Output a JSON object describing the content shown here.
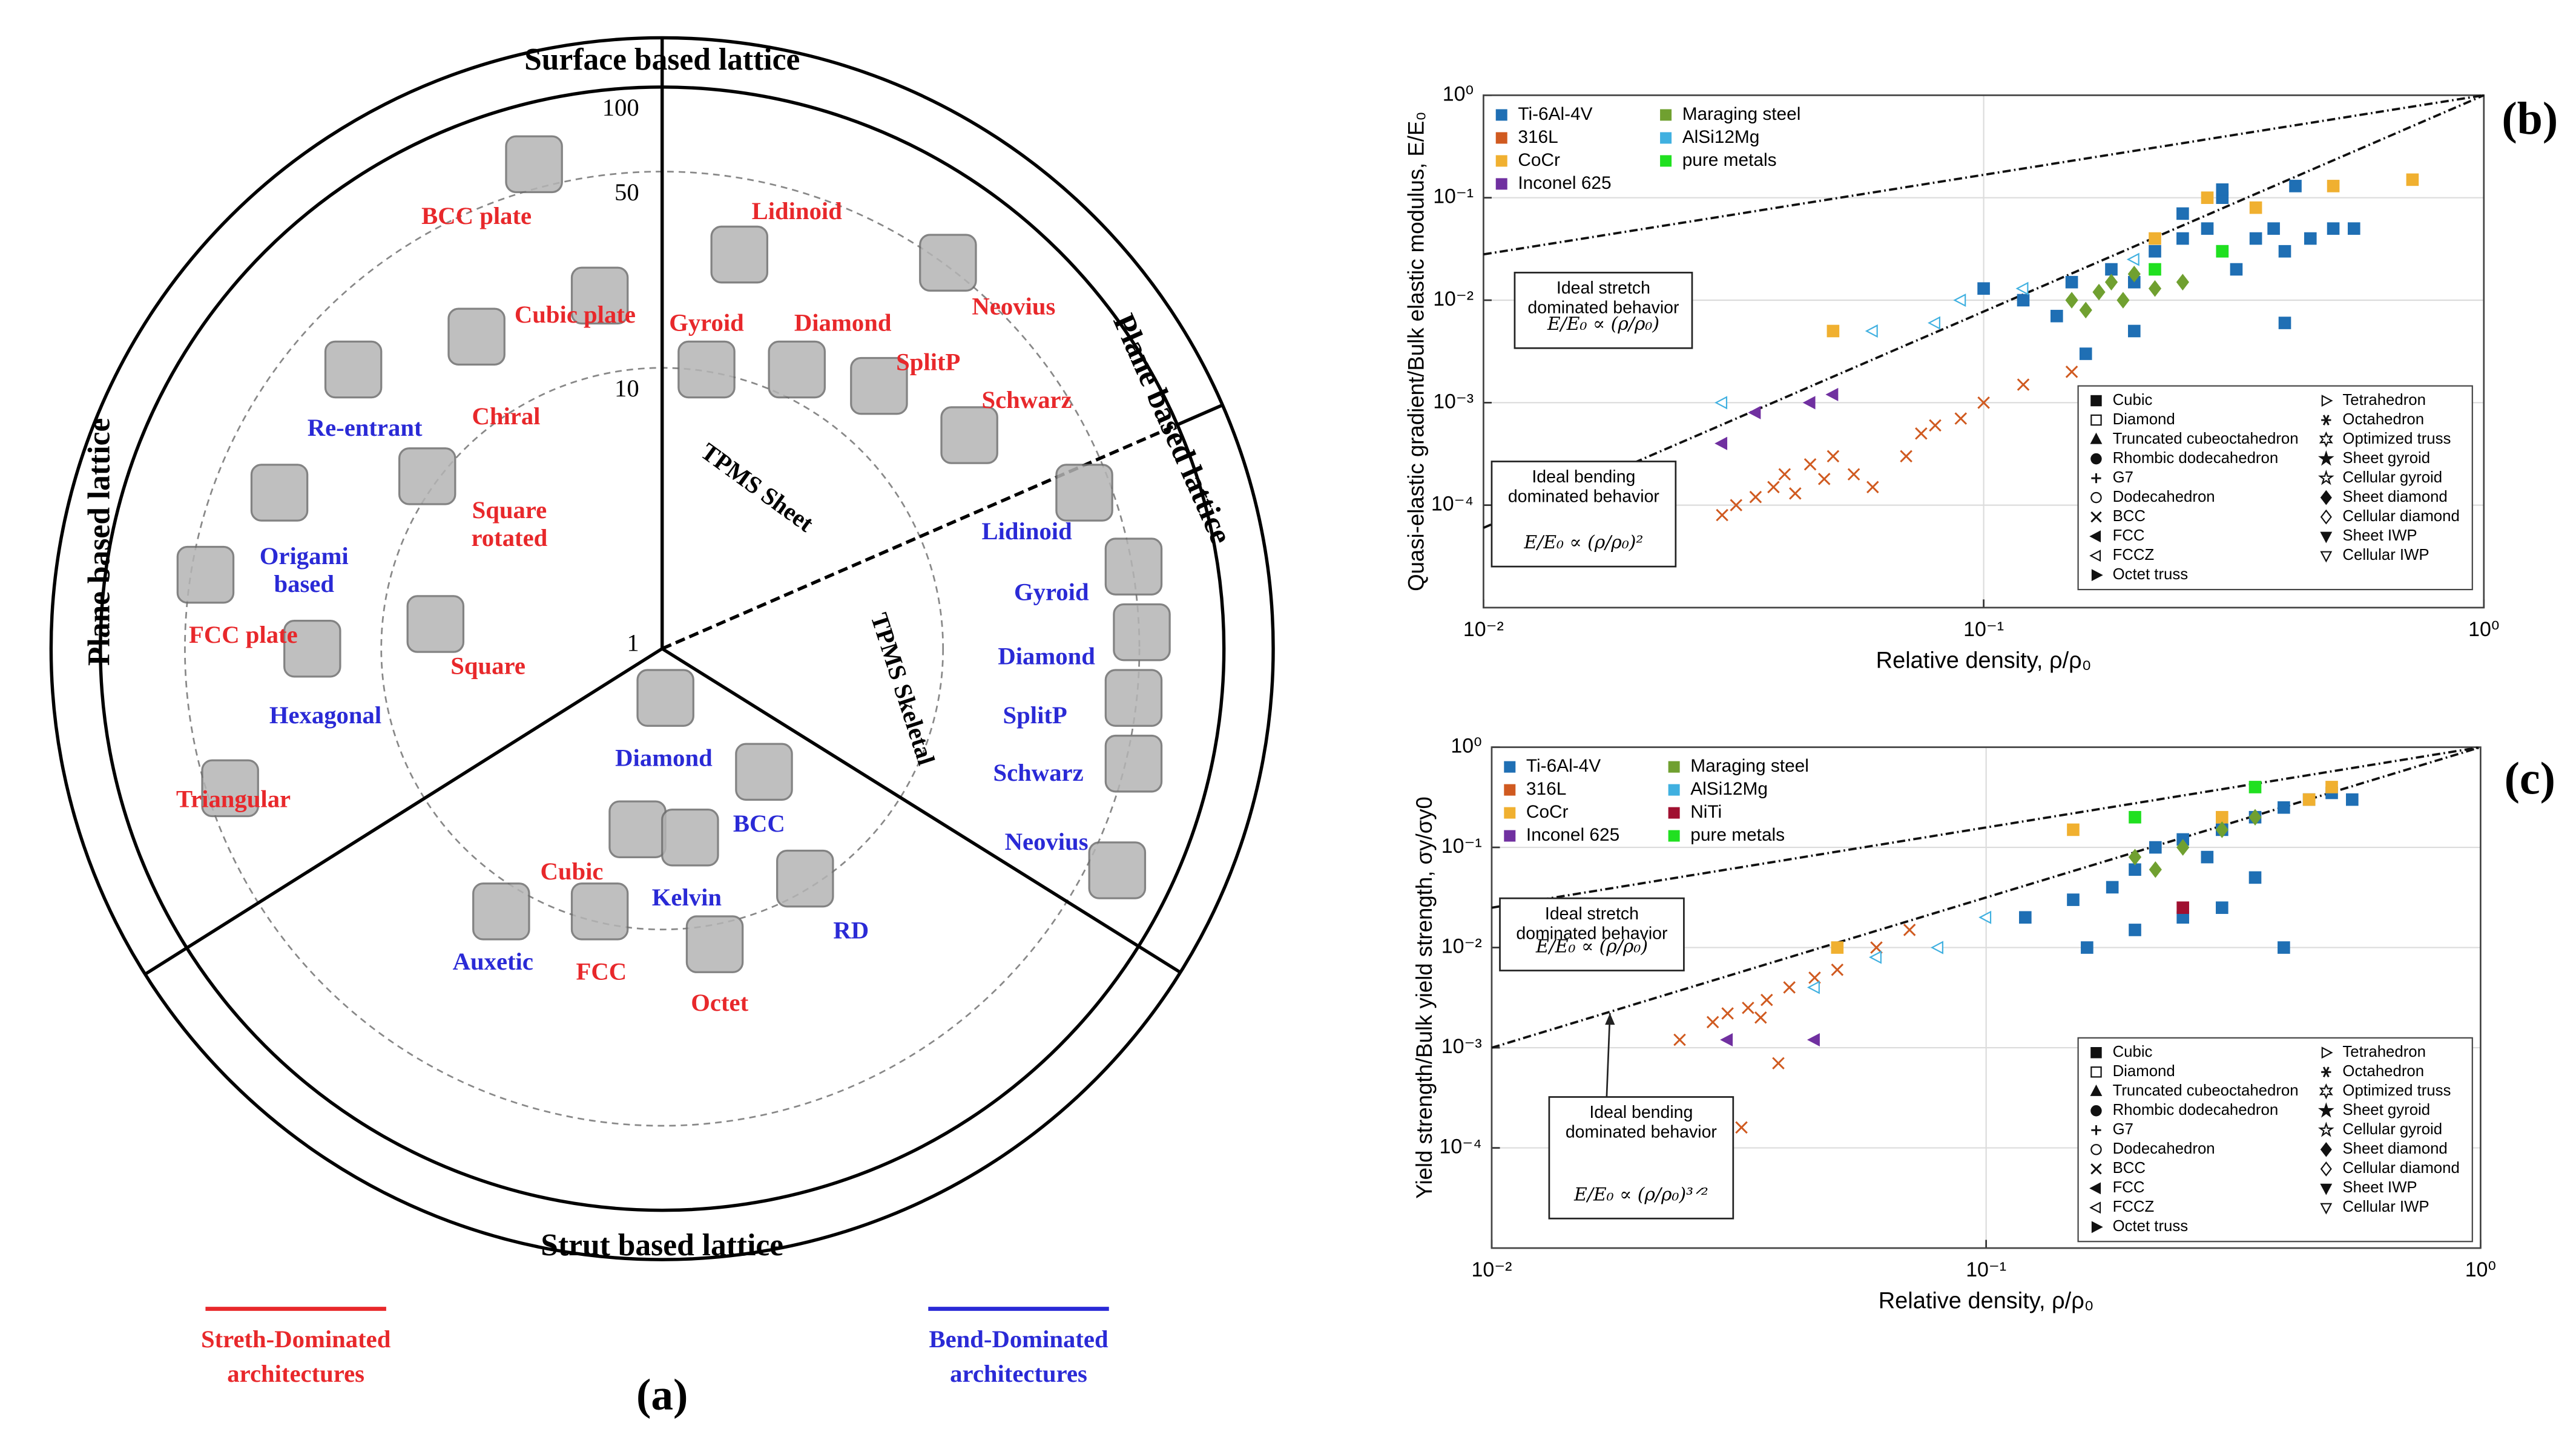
{
  "diagram": {
    "panel_label": "(a)",
    "regions": [
      "Surface based lattice",
      "Plane based lattice",
      "Plane based lattice",
      "Strut based lattice",
      "TPMS Sheet",
      "TPMS Skeletal"
    ],
    "scale_ticks": [
      1,
      10,
      50,
      100
    ],
    "groups": [
      {
        "name_lines": [
          "Streth-Dominated",
          "architectures"
        ],
        "color": "#e8282b",
        "items": [
          {
            "lines": [
              "BCC plate"
            ]
          },
          {
            "lines": [
              "Cubic plate"
            ]
          },
          {
            "lines": [
              "Chiral"
            ]
          },
          {
            "lines": [
              "Square",
              "rotated"
            ]
          },
          {
            "lines": [
              "FCC plate"
            ]
          },
          {
            "lines": [
              "Square"
            ]
          },
          {
            "lines": [
              "Triangular"
            ]
          },
          {
            "lines": [
              "Lidinoid"
            ]
          },
          {
            "lines": [
              "Gyroid"
            ]
          },
          {
            "lines": [
              "Diamond"
            ]
          },
          {
            "lines": [
              "Neovius"
            ]
          },
          {
            "lines": [
              "SplitP"
            ]
          },
          {
            "lines": [
              "Schwarz"
            ]
          },
          {
            "lines": [
              "Cubic"
            ]
          },
          {
            "lines": [
              "FCC"
            ]
          },
          {
            "lines": [
              "Octet"
            ]
          }
        ]
      },
      {
        "name_lines": [
          "Bend-Dominated",
          "architectures"
        ],
        "color": "#2a2ad6",
        "items": [
          {
            "lines": [
              "Re-entrant"
            ]
          },
          {
            "lines": [
              "Origami",
              "based"
            ]
          },
          {
            "lines": [
              "Hexagonal"
            ]
          },
          {
            "lines": [
              "Lidinoid"
            ]
          },
          {
            "lines": [
              "Gyroid"
            ]
          },
          {
            "lines": [
              "Diamond"
            ]
          },
          {
            "lines": [
              "SplitP"
            ]
          },
          {
            "lines": [
              "Schwarz"
            ]
          },
          {
            "lines": [
              "Neovius"
            ]
          },
          {
            "lines": [
              "Diamond"
            ]
          },
          {
            "lines": [
              "BCC"
            ]
          },
          {
            "lines": [
              "Kelvin"
            ]
          },
          {
            "lines": [
              "RD"
            ]
          },
          {
            "lines": [
              "Auxetic"
            ]
          }
        ]
      }
    ]
  },
  "chart_data": [
    {
      "type": "scatter",
      "panel_label": "(b)",
      "x_label": "Relative density, ρ/ρ₀",
      "y_label": "Quasi-elastic gradient/Bulk elastic modulus, E/E₀",
      "log_x": true,
      "log_y": true,
      "grid": true,
      "xlim": [
        0.01,
        1
      ],
      "ylim": [
        1e-05,
        1
      ],
      "xticks": [
        {
          "value": 0.01,
          "label": "10⁻²"
        },
        {
          "value": 0.1,
          "label": "10⁻¹"
        },
        {
          "value": 1,
          "label": "10⁰"
        }
      ],
      "yticks": [
        {
          "value": 0.0001,
          "label": "10⁻⁴"
        },
        {
          "value": 0.001,
          "label": "10⁻³"
        },
        {
          "value": 0.01,
          "label": "10⁻²"
        },
        {
          "value": 0.1,
          "label": "10⁻¹"
        },
        {
          "value": 1,
          "label": "10⁰"
        }
      ],
      "legend_loc": "upper left",
      "series": [
        {
          "name": "Ti-6Al-4V",
          "color": "#1f6fb4",
          "symbol": "square",
          "x": [
            0.1,
            0.12,
            0.14,
            0.15,
            0.18,
            0.2,
            0.22,
            0.25,
            0.28,
            0.3,
            0.32,
            0.35,
            0.38,
            0.4,
            0.45,
            0.5,
            0.55,
            0.3,
            0.25,
            0.2,
            0.4,
            0.16,
            0.3,
            0.42
          ],
          "values": [
            0.013,
            0.01,
            0.007,
            0.015,
            0.02,
            0.015,
            0.03,
            0.04,
            0.05,
            0.03,
            0.02,
            0.04,
            0.05,
            0.03,
            0.04,
            0.05,
            0.05,
            0.1,
            0.07,
            0.005,
            0.006,
            0.003,
            0.12,
            0.13
          ]
        },
        {
          "name": "316L",
          "color": "#d05a20",
          "symbol": "x",
          "x": [
            0.03,
            0.032,
            0.035,
            0.038,
            0.04,
            0.042,
            0.045,
            0.048,
            0.05,
            0.055,
            0.06,
            0.07,
            0.075,
            0.08,
            0.09,
            0.1,
            0.12,
            0.15
          ],
          "values": [
            8e-05,
            0.0001,
            0.00012,
            0.00015,
            0.0002,
            0.00013,
            0.00025,
            0.00018,
            0.0003,
            0.0002,
            0.00015,
            0.0003,
            0.0005,
            0.0006,
            0.0007,
            0.001,
            0.0015,
            0.002
          ]
        },
        {
          "name": "CoCr",
          "color": "#f0b030",
          "symbol": "square",
          "x": [
            0.05,
            0.22,
            0.35,
            0.5,
            0.72,
            0.28
          ],
          "values": [
            0.005,
            0.04,
            0.08,
            0.13,
            0.15,
            0.1
          ]
        },
        {
          "name": "Inconel 625",
          "color": "#7030a0",
          "symbol": "triangle-left",
          "x": [
            0.03,
            0.045,
            0.05,
            0.035
          ],
          "values": [
            0.0004,
            0.001,
            0.0012,
            0.0008
          ]
        },
        {
          "name": "Maraging steel",
          "color": "#70a030",
          "symbol": "diamond",
          "x": [
            0.15,
            0.17,
            0.18,
            0.2,
            0.22,
            0.16,
            0.25,
            0.19
          ],
          "values": [
            0.01,
            0.012,
            0.015,
            0.018,
            0.013,
            0.008,
            0.015,
            0.01
          ]
        },
        {
          "name": "AlSi12Mg",
          "color": "#40b0e0",
          "symbol": "triangle-left-open",
          "x": [
            0.06,
            0.08,
            0.09,
            0.12,
            0.03,
            0.2
          ],
          "values": [
            0.005,
            0.006,
            0.01,
            0.013,
            0.001,
            0.025
          ]
        },
        {
          "name": "pure metals",
          "color": "#20e020",
          "symbol": "square",
          "x": [
            0.22,
            0.3
          ],
          "values": [
            0.02,
            0.03
          ]
        }
      ],
      "reference_lines": [
        {
          "x": [
            0.01,
            1
          ],
          "y": [
            0.028,
            1
          ]
        },
        {
          "x": [
            0.01,
            1
          ],
          "y": [
            6e-05,
            1
          ]
        }
      ],
      "annotations": [
        {
          "lines": [
            "Ideal stretch",
            "dominated behavior"
          ],
          "formula": "E/E₀ ∝ (ρ/ρ₀)"
        },
        {
          "lines": [
            "Ideal bending",
            "dominated behavior"
          ],
          "formula": "E/E₀ ∝ (ρ/ρ₀)²"
        }
      ],
      "marker_legend": {
        "loc": "lower right",
        "entries": [
          {
            "label": "Cubic",
            "symbol": "square"
          },
          {
            "label": "Diamond",
            "symbol": "square-open"
          },
          {
            "label": "Truncated cubeoctahedron",
            "symbol": "triangle"
          },
          {
            "label": "Rhombic dodecahedron",
            "symbol": "circle"
          },
          {
            "label": "G7",
            "symbol": "plus"
          },
          {
            "label": "Dodecahedron",
            "symbol": "circle-open"
          },
          {
            "label": "BCC",
            "symbol": "x"
          },
          {
            "label": "FCC",
            "symbol": "triangle-left"
          },
          {
            "label": "FCCZ",
            "symbol": "triangle-left-open"
          },
          {
            "label": "Octet truss",
            "symbol": "triangle-right"
          },
          {
            "label": "Tetrahedron",
            "symbol": "triangle-right-open"
          },
          {
            "label": "Octahedron",
            "symbol": "asterisk"
          },
          {
            "label": "Optimized truss",
            "symbol": "star6-open"
          },
          {
            "label": "Sheet gyroid",
            "symbol": "star"
          },
          {
            "label": "Cellular gyroid",
            "symbol": "star-open"
          },
          {
            "label": "Sheet diamond",
            "symbol": "diamond"
          },
          {
            "label": "Cellular diamond",
            "symbol": "diamond-open"
          },
          {
            "label": "Sheet IWP",
            "symbol": "triangle-down"
          },
          {
            "label": "Cellular IWP",
            "symbol": "triangle-down-open"
          }
        ]
      }
    },
    {
      "type": "scatter",
      "panel_label": "(c)",
      "x_label": "Relative density, ρ/ρ₀",
      "y_label": "Yield strength/Bulk yield strength, σy/σy0",
      "log_x": true,
      "log_y": true,
      "grid": true,
      "xlim": [
        0.01,
        1
      ],
      "ylim": [
        1e-05,
        1
      ],
      "xticks": [
        {
          "value": 0.01,
          "label": "10⁻²"
        },
        {
          "value": 0.1,
          "label": "10⁻¹"
        },
        {
          "value": 1,
          "label": "10⁰"
        }
      ],
      "yticks": [
        {
          "value": 0.0001,
          "label": "10⁻⁴"
        },
        {
          "value": 0.001,
          "label": "10⁻³"
        },
        {
          "value": 0.01,
          "label": "10⁻²"
        },
        {
          "value": 0.1,
          "label": "10⁻¹"
        },
        {
          "value": 1,
          "label": "10⁰"
        }
      ],
      "legend_loc": "upper left",
      "series": [
        {
          "name": "Ti-6Al-4V",
          "color": "#1f6fb4",
          "symbol": "square",
          "x": [
            0.12,
            0.15,
            0.18,
            0.2,
            0.22,
            0.25,
            0.3,
            0.35,
            0.4,
            0.45,
            0.5,
            0.55,
            0.2,
            0.25,
            0.3,
            0.4,
            0.35,
            0.28,
            0.16
          ],
          "values": [
            0.02,
            0.03,
            0.04,
            0.06,
            0.1,
            0.12,
            0.15,
            0.2,
            0.25,
            0.3,
            0.35,
            0.3,
            0.015,
            0.02,
            0.025,
            0.01,
            0.05,
            0.08,
            0.01
          ]
        },
        {
          "name": "316L",
          "color": "#d05a20",
          "symbol": "x",
          "x": [
            0.024,
            0.028,
            0.03,
            0.033,
            0.036,
            0.04,
            0.045,
            0.05,
            0.032,
            0.038,
            0.06,
            0.07,
            0.035
          ],
          "values": [
            0.0012,
            0.0018,
            0.0022,
            0.0025,
            0.003,
            0.004,
            0.005,
            0.006,
            0.00016,
            0.0007,
            0.01,
            0.015,
            0.002
          ]
        },
        {
          "name": "CoCr",
          "color": "#f0b030",
          "symbol": "square",
          "x": [
            0.05,
            0.15,
            0.3,
            0.5,
            0.45
          ],
          "values": [
            0.01,
            0.15,
            0.2,
            0.4,
            0.3
          ]
        },
        {
          "name": "Inconel 625",
          "color": "#7030a0",
          "symbol": "triangle-left",
          "x": [
            0.03,
            0.045
          ],
          "values": [
            0.0012,
            0.0012
          ]
        },
        {
          "name": "Maraging steel",
          "color": "#70a030",
          "symbol": "diamond",
          "x": [
            0.2,
            0.25,
            0.3,
            0.22,
            0.35
          ],
          "values": [
            0.08,
            0.1,
            0.15,
            0.06,
            0.2
          ]
        },
        {
          "name": "AlSi12Mg",
          "color": "#40b0e0",
          "symbol": "triangle-left-open",
          "x": [
            0.06,
            0.08,
            0.1,
            0.045
          ],
          "values": [
            0.008,
            0.01,
            0.02,
            0.004
          ]
        },
        {
          "name": "NiTi",
          "color": "#a01030",
          "symbol": "square",
          "x": [
            0.25
          ],
          "values": [
            0.025
          ]
        },
        {
          "name": "pure metals",
          "color": "#20e020",
          "symbol": "square",
          "x": [
            0.2,
            0.35
          ],
          "values": [
            0.2,
            0.4
          ]
        }
      ],
      "reference_lines": [
        {
          "x": [
            0.01,
            1
          ],
          "y": [
            0.025,
            1
          ]
        },
        {
          "x": [
            0.01,
            1
          ],
          "y": [
            0.001,
            1
          ]
        }
      ],
      "annotations": [
        {
          "lines": [
            "Ideal stretch",
            "dominated behavior"
          ],
          "formula": "E/E₀ ∝ (ρ/ρ₀)"
        },
        {
          "lines": [
            "Ideal bending",
            "dominated behavior"
          ],
          "formula": "E/E₀ ∝ (ρ/ρ₀)³ᐟ²"
        }
      ],
      "marker_legend": {
        "loc": "lower right",
        "entries": [
          {
            "label": "Cubic",
            "symbol": "square"
          },
          {
            "label": "Diamond",
            "symbol": "square-open"
          },
          {
            "label": "Truncated cubeoctahedron",
            "symbol": "triangle"
          },
          {
            "label": "Rhombic dodecahedron",
            "symbol": "circle"
          },
          {
            "label": "G7",
            "symbol": "plus"
          },
          {
            "label": "Dodecahedron",
            "symbol": "circle-open"
          },
          {
            "label": "BCC",
            "symbol": "x"
          },
          {
            "label": "FCC",
            "symbol": "triangle-left"
          },
          {
            "label": "FCCZ",
            "symbol": "triangle-left-open"
          },
          {
            "label": "Octet truss",
            "symbol": "triangle-right"
          },
          {
            "label": "Tetrahedron",
            "symbol": "triangle-right-open"
          },
          {
            "label": "Octahedron",
            "symbol": "asterisk"
          },
          {
            "label": "Optimized truss",
            "symbol": "star6-open"
          },
          {
            "label": "Sheet gyroid",
            "symbol": "star"
          },
          {
            "label": "Cellular gyroid",
            "symbol": "star-open"
          },
          {
            "label": "Sheet diamond",
            "symbol": "diamond"
          },
          {
            "label": "Cellular diamond",
            "symbol": "diamond-open"
          },
          {
            "label": "Sheet IWP",
            "symbol": "triangle-down"
          },
          {
            "label": "Cellular IWP",
            "symbol": "triangle-down-open"
          }
        ]
      }
    }
  ]
}
